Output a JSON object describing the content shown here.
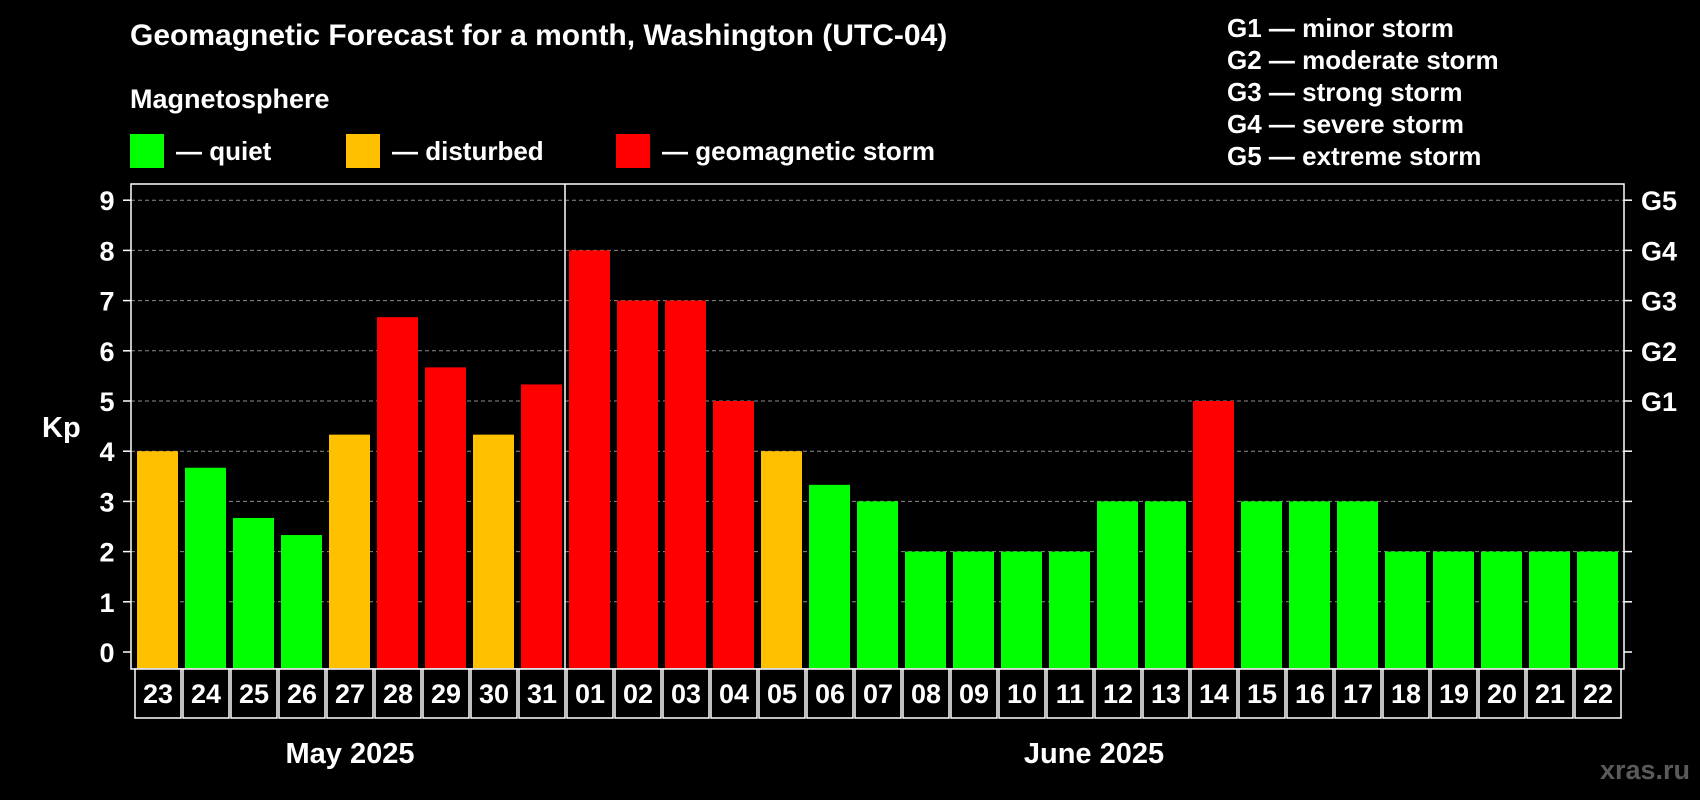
{
  "header": {
    "title": "Geomagnetic Forecast for a month, Washington (UTC-04)",
    "subtitle": "Magnetosphere"
  },
  "legend": [
    {
      "label": "— quiet",
      "color": "#00ff00"
    },
    {
      "label": "— disturbed",
      "color": "#ffc000"
    },
    {
      "label": "— geomagnetic storm",
      "color": "#ff0000"
    }
  ],
  "storm_levels": [
    "G1 — minor storm",
    "G2 — moderate storm",
    "G3 — strong storm",
    "G4 — severe storm",
    "G5 — extreme storm"
  ],
  "watermark": "xras.ru",
  "chart_data": {
    "type": "bar",
    "title": "Geomagnetic Forecast for a month, Washington (UTC-04)",
    "ylabel": "Kp",
    "ylim": [
      0,
      9
    ],
    "yticks": [
      "0",
      "1",
      "2",
      "3",
      "4",
      "5",
      "6",
      "7",
      "8",
      "9"
    ],
    "right_axis_labels": [
      {
        "kp": 5,
        "label": "G1"
      },
      {
        "kp": 6,
        "label": "G2"
      },
      {
        "kp": 7,
        "label": "G3"
      },
      {
        "kp": 8,
        "label": "G4"
      },
      {
        "kp": 9,
        "label": "G5"
      }
    ],
    "grid": "horizontal dashed",
    "months": [
      {
        "label": "May 2025",
        "first_index": 0,
        "last_index": 8
      },
      {
        "label": "June 2025",
        "first_index": 9,
        "last_index": 30
      }
    ],
    "categories": [
      "23",
      "24",
      "25",
      "26",
      "27",
      "28",
      "29",
      "30",
      "31",
      "01",
      "02",
      "03",
      "04",
      "05",
      "06",
      "07",
      "08",
      "09",
      "10",
      "11",
      "12",
      "13",
      "14",
      "15",
      "16",
      "17",
      "18",
      "19",
      "20",
      "21",
      "22"
    ],
    "values": [
      4,
      3.67,
      2.67,
      2.33,
      4.33,
      6.67,
      5.67,
      4.33,
      5.33,
      8,
      7,
      7,
      5,
      4,
      3.33,
      3,
      2,
      2,
      2,
      2,
      3,
      3,
      5,
      3,
      3,
      3,
      2,
      2,
      2,
      2,
      2
    ],
    "status": [
      "disturbed",
      "quiet",
      "quiet",
      "quiet",
      "disturbed",
      "storm",
      "storm",
      "disturbed",
      "storm",
      "storm",
      "storm",
      "storm",
      "storm",
      "disturbed",
      "quiet",
      "quiet",
      "quiet",
      "quiet",
      "quiet",
      "quiet",
      "quiet",
      "quiet",
      "storm",
      "quiet",
      "quiet",
      "quiet",
      "quiet",
      "quiet",
      "quiet",
      "quiet",
      "quiet"
    ],
    "colors": {
      "quiet": "#00ff00",
      "disturbed": "#ffc000",
      "storm": "#ff0000"
    }
  }
}
